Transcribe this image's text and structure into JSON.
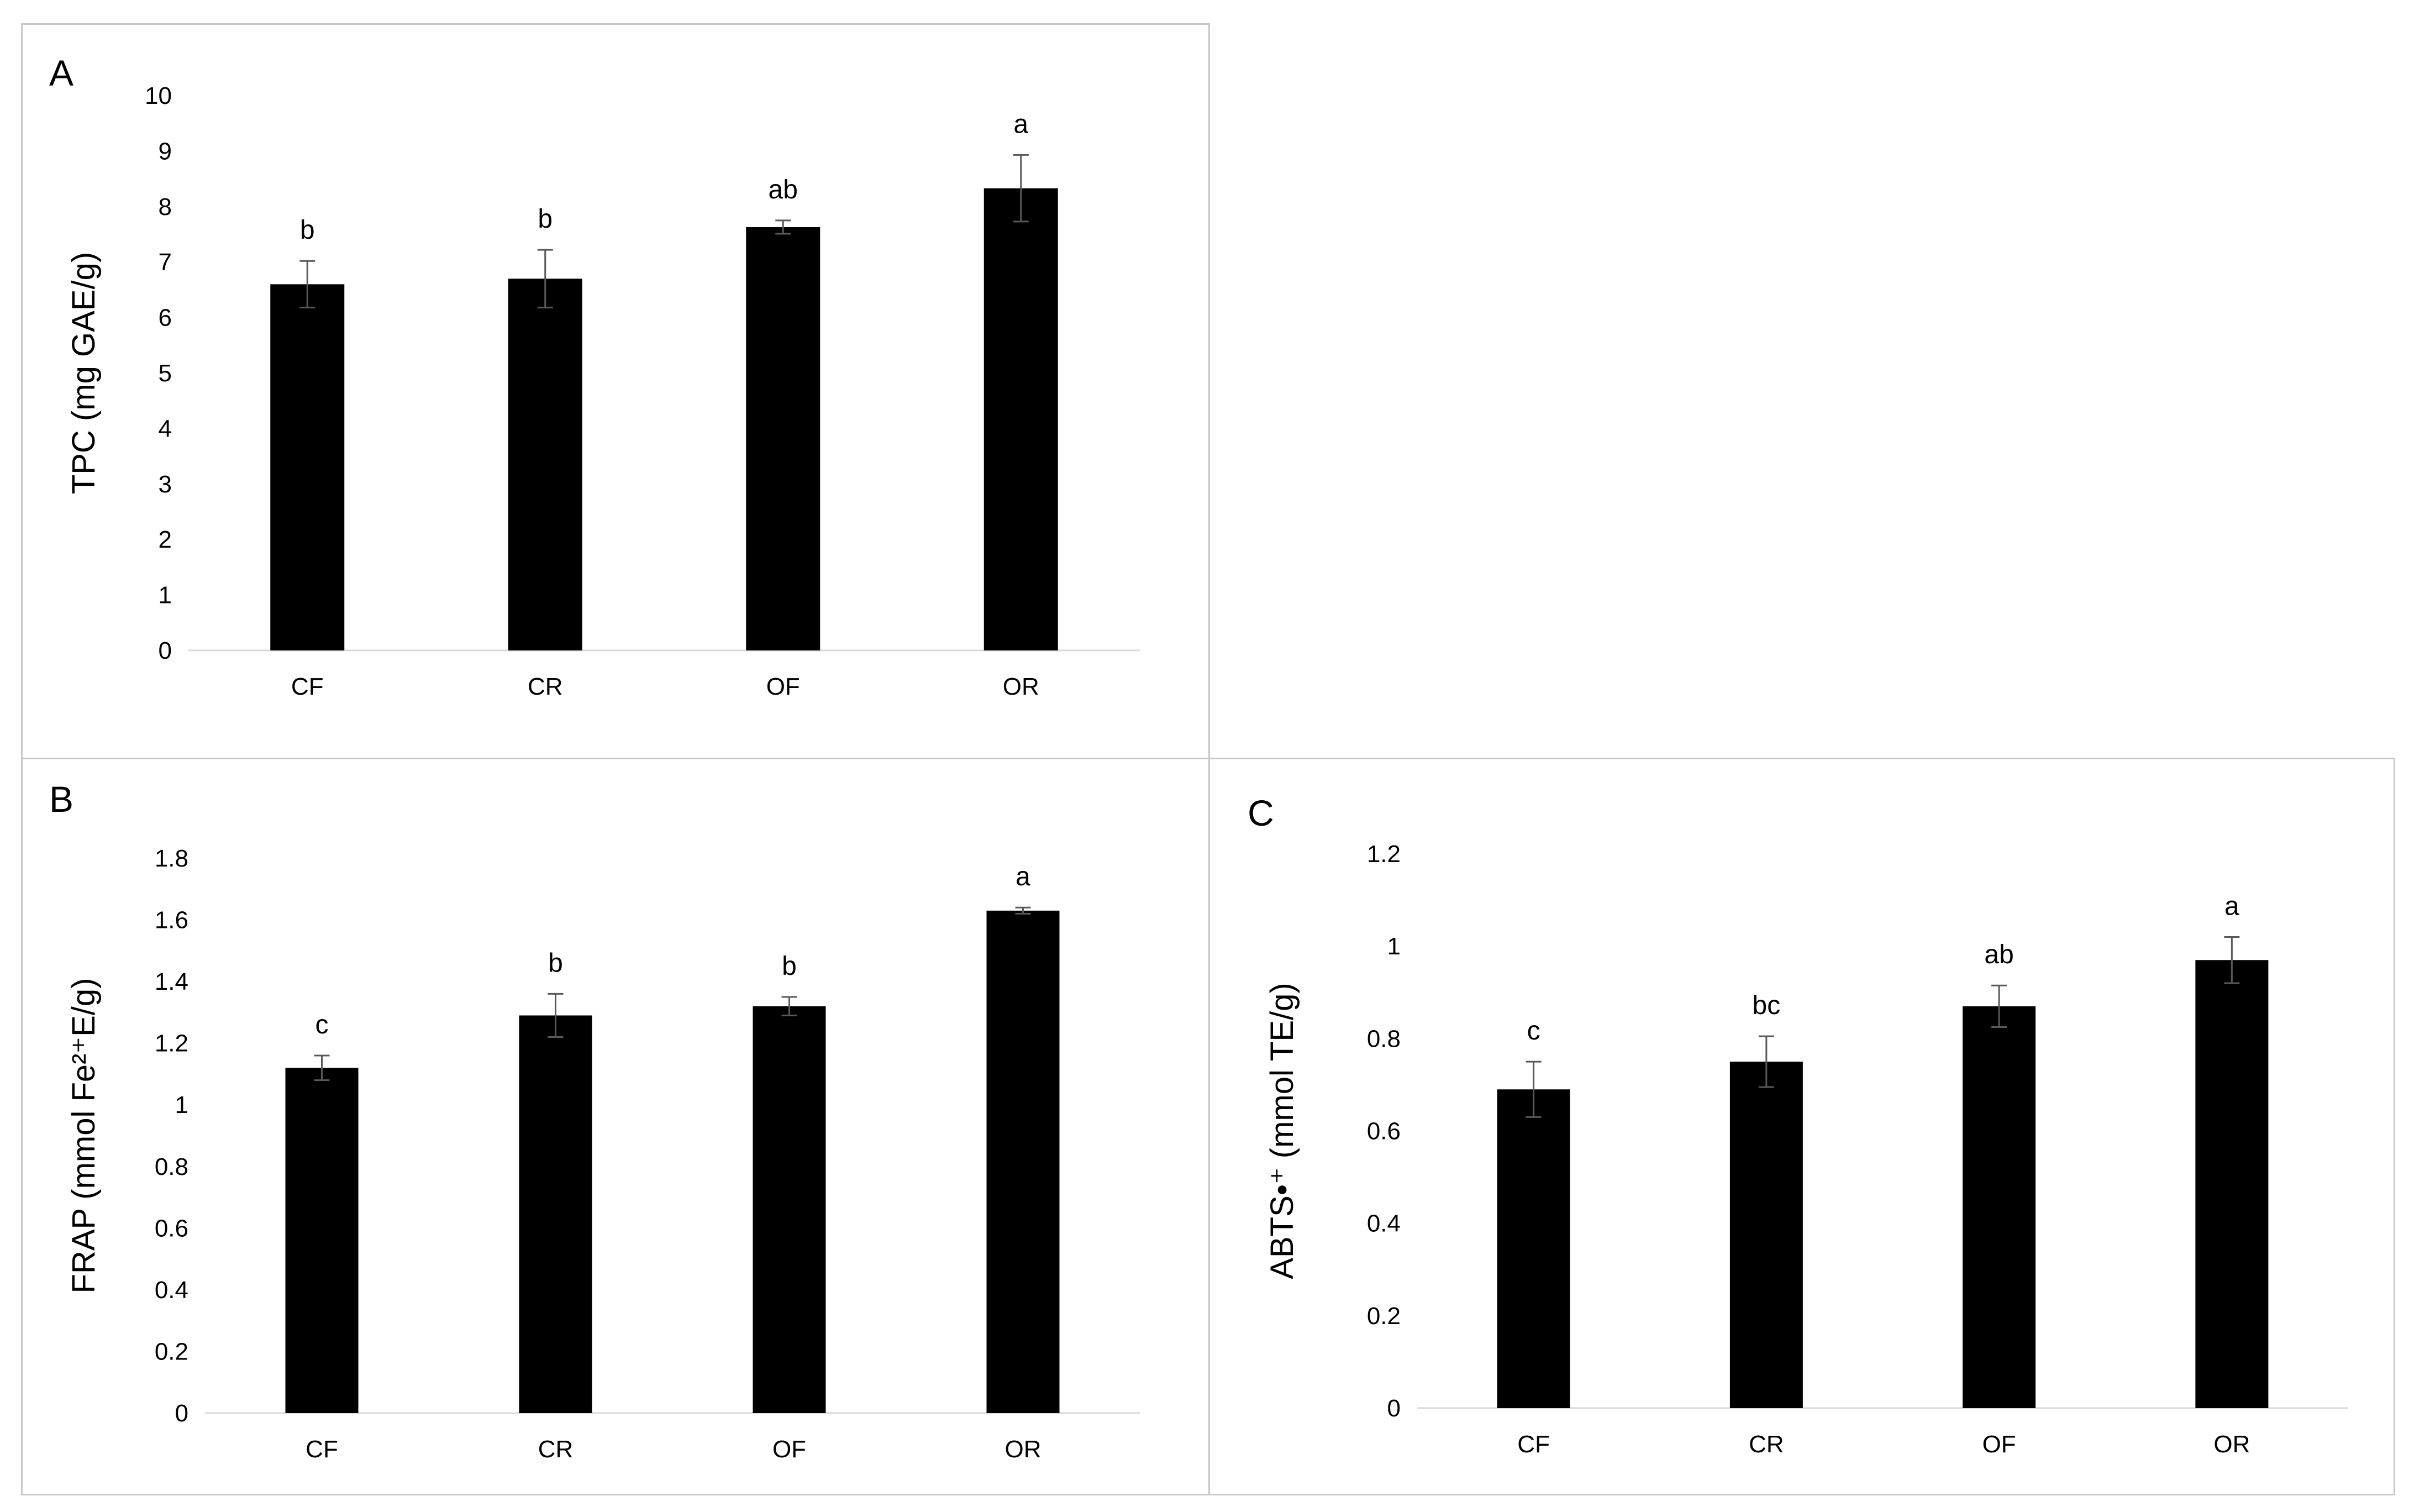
{
  "colors": {
    "bar": "#000000",
    "axis": "#d9d9d9",
    "error": "#595959",
    "border": "#c8c8c8"
  },
  "chart_data": [
    {
      "panel": "A",
      "type": "bar",
      "categories": [
        "CF",
        "CR",
        "OF",
        "OR"
      ],
      "values": [
        6.6,
        6.7,
        7.63,
        8.33
      ],
      "errors": [
        0.42,
        0.52,
        0.12,
        0.6
      ],
      "significance": [
        "b",
        "b",
        "ab",
        "a"
      ],
      "ylabel": "TPC (mg GAE/g)",
      "ylim": [
        0,
        10
      ],
      "yticks": [
        0,
        1,
        2,
        3,
        4,
        5,
        6,
        7,
        8,
        9,
        10
      ],
      "ytick_labels": [
        "0",
        "1",
        "2",
        "3",
        "4",
        "5",
        "6",
        "7",
        "8",
        "9",
        "10"
      ]
    },
    {
      "panel": "B",
      "type": "bar",
      "categories": [
        "CF",
        "CR",
        "OF",
        "OR"
      ],
      "values": [
        1.12,
        1.29,
        1.32,
        1.63
      ],
      "errors": [
        0.04,
        0.07,
        0.03,
        0.01
      ],
      "significance": [
        "c",
        "b",
        "b",
        "a"
      ],
      "ylabel": "FRAP (mmol Fe²⁺E/g)",
      "ylim": [
        0,
        1.8
      ],
      "yticks": [
        0,
        0.2,
        0.4,
        0.6,
        0.8,
        1,
        1.2,
        1.4,
        1.6,
        1.8
      ],
      "ytick_labels": [
        "0",
        "0.2",
        "0.4",
        "0.6",
        "0.8",
        "1",
        "1.2",
        "1.4",
        "1.6",
        "1.8"
      ]
    },
    {
      "panel": "C",
      "type": "bar",
      "categories": [
        "CF",
        "CR",
        "OF",
        "OR"
      ],
      "values": [
        0.69,
        0.75,
        0.87,
        0.97
      ],
      "errors": [
        0.06,
        0.055,
        0.045,
        0.05
      ],
      "significance": [
        "c",
        "bc",
        "ab",
        "a"
      ],
      "ylabel": "ABTS•⁺ (mmol TE/g)",
      "ylim": [
        0,
        1.2
      ],
      "yticks": [
        0,
        0.2,
        0.4,
        0.6,
        0.8,
        1,
        1.2
      ],
      "ytick_labels": [
        "0",
        "0.2",
        "0.4",
        "0.6",
        "0.8",
        "1",
        "1.2"
      ]
    }
  ]
}
